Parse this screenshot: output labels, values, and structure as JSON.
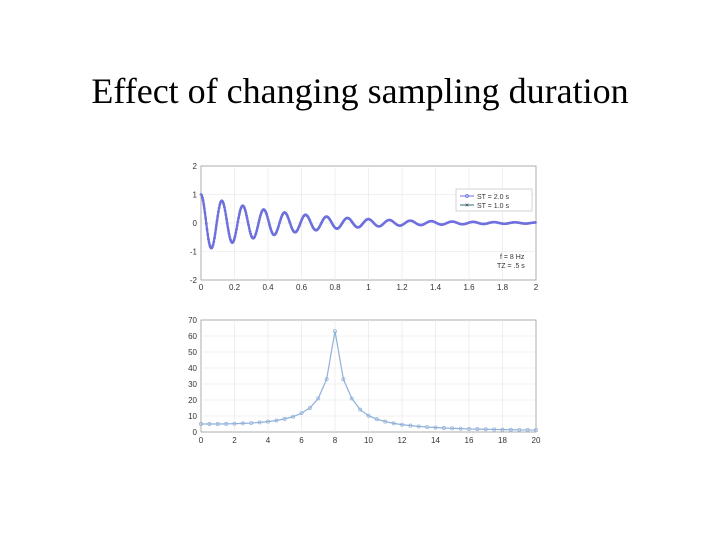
{
  "slide": {
    "title": "Effect of changing sampling duration"
  },
  "colors": {
    "st2": "#6f6fe0",
    "st1": "#2f6f7f",
    "spectrum": "#8fb0d8",
    "grid": "#e4e4e4"
  },
  "chart_data": [
    {
      "type": "line",
      "title": "",
      "xlabel": "",
      "ylabel": "",
      "xlim": [
        0,
        2
      ],
      "ylim": [
        -2,
        2
      ],
      "grid": true,
      "x_ticks": [
        "0",
        "0.2",
        "0.4",
        "0.6",
        "0.8",
        "1",
        "1.2",
        "1.4",
        "1.6",
        "1.8",
        "2"
      ],
      "y_ticks": [
        "2",
        "1",
        "0",
        "-1",
        "-2"
      ],
      "legend_position": "top-right",
      "series": [
        {
          "name": "ST = 2.0 s",
          "duration": 2.0,
          "color": "#6f6fe0",
          "marker": "o"
        },
        {
          "name": "ST = 1.0 s",
          "duration": 1.0,
          "color": "#2f6f7f",
          "marker": "x"
        }
      ],
      "signal": {
        "frequency": 8,
        "decay_time": 0.5
      },
      "annotations": [
        "f = 8 Hz",
        "TZ = .5 s"
      ]
    },
    {
      "type": "line",
      "title": "",
      "xlabel": "",
      "ylabel": "",
      "xlim": [
        0,
        20
      ],
      "ylim": [
        0,
        70
      ],
      "grid": true,
      "x_ticks": [
        "0",
        "2",
        "4",
        "6",
        "8",
        "10",
        "12",
        "14",
        "16",
        "18",
        "20"
      ],
      "y_ticks": [
        "70",
        "60",
        "50",
        "40",
        "30",
        "20",
        "10",
        "0"
      ],
      "series": [
        {
          "marker": "o",
          "x": [
            0,
            0.5,
            1,
            1.5,
            2,
            2.5,
            3,
            3.5,
            4,
            4.5,
            5,
            5.5,
            6,
            6.5,
            7,
            7.5,
            8,
            8.5,
            9,
            9.5,
            10,
            10.5,
            11,
            11.5,
            12,
            12.5,
            13,
            13.5,
            14,
            14.5,
            15,
            15.5,
            16,
            16.5,
            17,
            17.5,
            18,
            18.5,
            19,
            19.5,
            20
          ],
          "y": [
            5,
            5,
            5,
            5.1,
            5.2,
            5.4,
            5.6,
            6,
            6.5,
            7.2,
            8.2,
            9.6,
            11.8,
            15,
            21,
            33,
            63,
            33,
            21,
            14,
            10.2,
            8,
            6.5,
            5.4,
            4.6,
            4,
            3.5,
            3.1,
            2.8,
            2.5,
            2.3,
            2.1,
            1.9,
            1.8,
            1.7,
            1.6,
            1.5,
            1.4,
            1.3,
            1.3,
            1.2
          ]
        }
      ]
    }
  ]
}
